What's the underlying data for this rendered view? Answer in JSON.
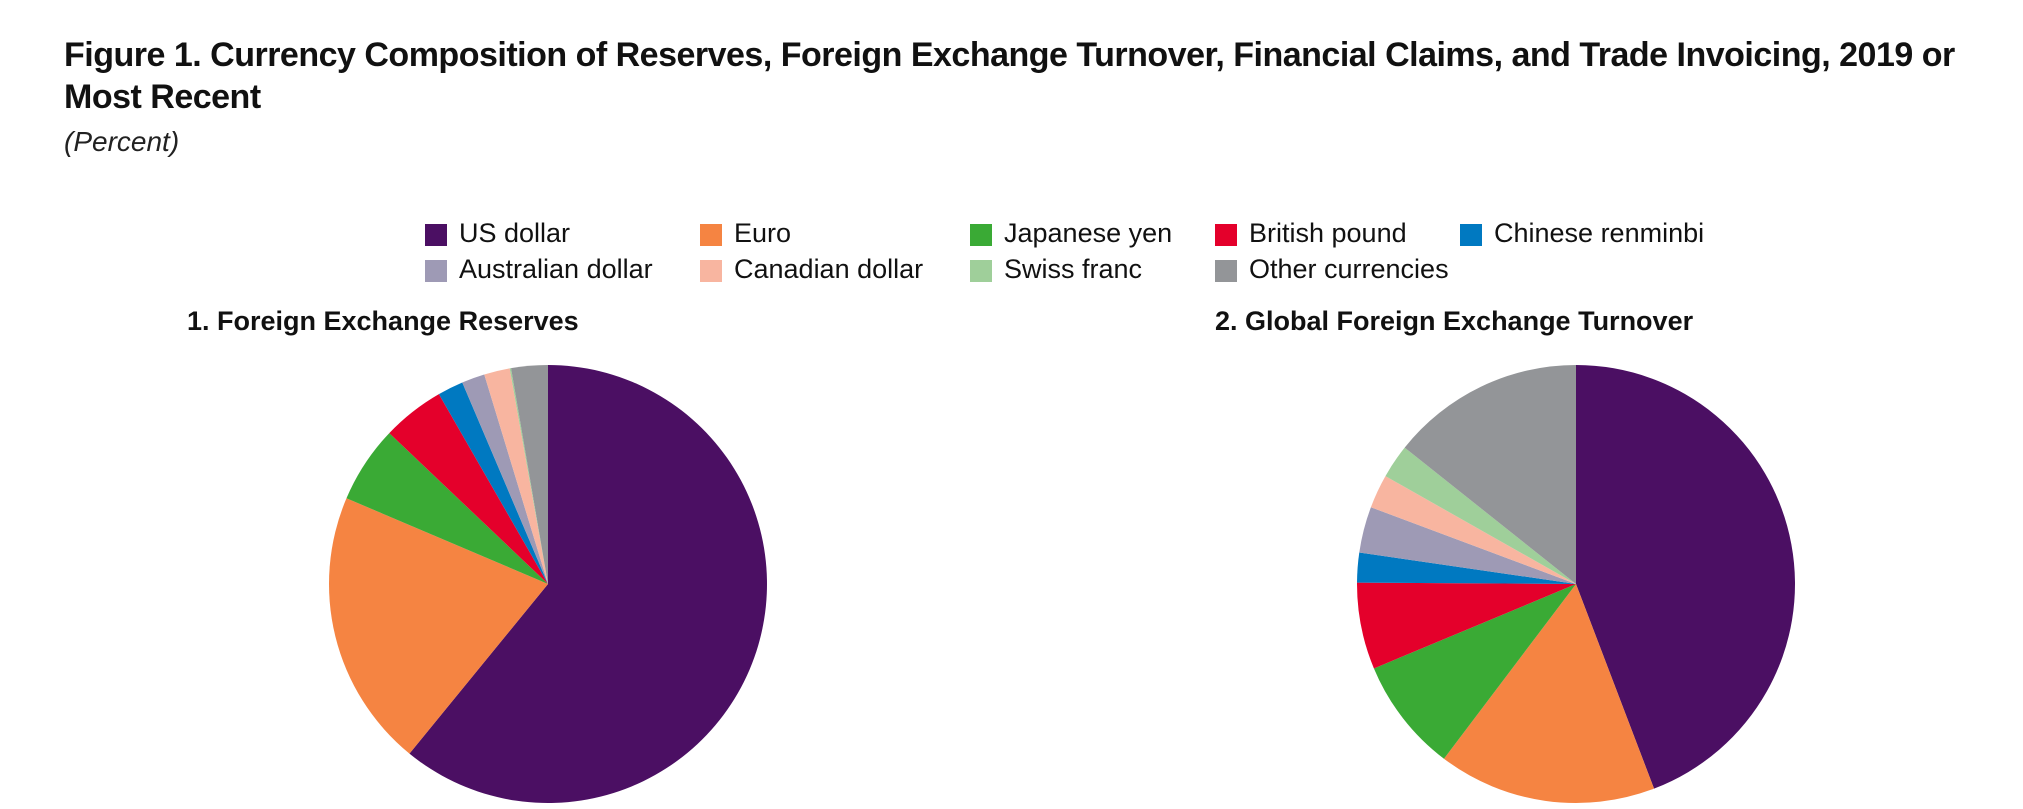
{
  "title": "Figure 1. Currency Composition of Reserves, Foreign Exchange Turnover, Financial Claims, and Trade Invoicing, 2019 or Most Recent",
  "subtitle": "(Percent)",
  "legend": {
    "labels": [
      "US dollar",
      "Euro",
      "Japanese yen",
      "British pound",
      "Chinese renminbi",
      "Australian dollar",
      "Canadian dollar",
      "Swiss franc",
      "Other currencies"
    ],
    "colors": [
      "#4b0f63",
      "#f58442",
      "#3aaa35",
      "#e4002b",
      "#0079c1",
      "#9e9ab5",
      "#f8b5a0",
      "#9fcf9a",
      "#939598"
    ]
  },
  "chart_data": [
    {
      "type": "pie",
      "title": "1. Foreign Exchange Reserves",
      "values": [
        60.9,
        20.5,
        5.7,
        4.6,
        1.9,
        1.7,
        1.9,
        0.1,
        2.7
      ]
    },
    {
      "type": "pie",
      "title": "2. Global Foreign Exchange Turnover",
      "values": [
        44.2,
        16.1,
        8.4,
        6.4,
        2.2,
        3.4,
        2.5,
        2.5,
        14.3
      ]
    }
  ]
}
